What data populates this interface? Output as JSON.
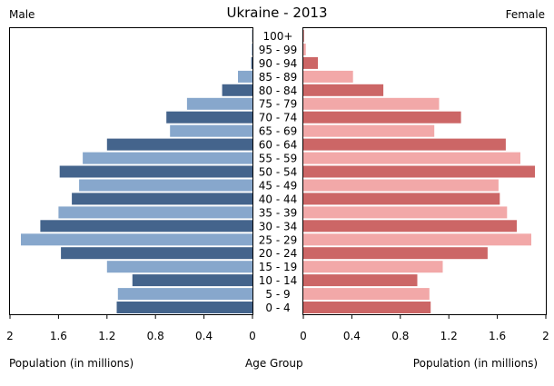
{
  "chart_data": {
    "type": "bar",
    "orientation": "horizontal-population-pyramid",
    "title": "Ukraine - 2013",
    "left_header": "Male",
    "right_header": "Female",
    "left_xlabel": "Population (in millions)",
    "center_label": "Age Group",
    "right_xlabel": "Population (in millions)",
    "categories": [
      "0 - 4",
      "5 - 9",
      "10 - 14",
      "15 - 19",
      "20 - 24",
      "25 - 29",
      "30 - 34",
      "35 - 39",
      "40 - 44",
      "45 - 49",
      "50 - 54",
      "55 - 59",
      "60 - 64",
      "65 - 69",
      "70 - 74",
      "75 - 79",
      "80 - 84",
      "85 - 89",
      "90 - 94",
      "95 - 99",
      "100+"
    ],
    "series": [
      {
        "name": "Male",
        "values": [
          1.12,
          1.11,
          0.99,
          1.2,
          1.58,
          1.91,
          1.75,
          1.6,
          1.49,
          1.43,
          1.59,
          1.4,
          1.2,
          0.68,
          0.71,
          0.54,
          0.25,
          0.12,
          0.01,
          0.005,
          0.002
        ]
      },
      {
        "name": "Female",
        "values": [
          1.05,
          1.04,
          0.94,
          1.15,
          1.52,
          1.88,
          1.76,
          1.68,
          1.62,
          1.61,
          1.91,
          1.79,
          1.67,
          1.08,
          1.3,
          1.12,
          0.66,
          0.41,
          0.12,
          0.02,
          0.005
        ]
      }
    ],
    "xlim": [
      0,
      2
    ],
    "ticks": [
      "2",
      "1.6",
      "1.2",
      "0.8",
      "0.4",
      "0",
      "0",
      "0.4",
      "0.8",
      "1.2",
      "1.6",
      "2"
    ],
    "grid": false,
    "colors": {
      "male_dark": "#44648c",
      "male_light": "#87a7cc",
      "female_dark": "#cc6666",
      "female_light": "#f2a8a8"
    }
  }
}
